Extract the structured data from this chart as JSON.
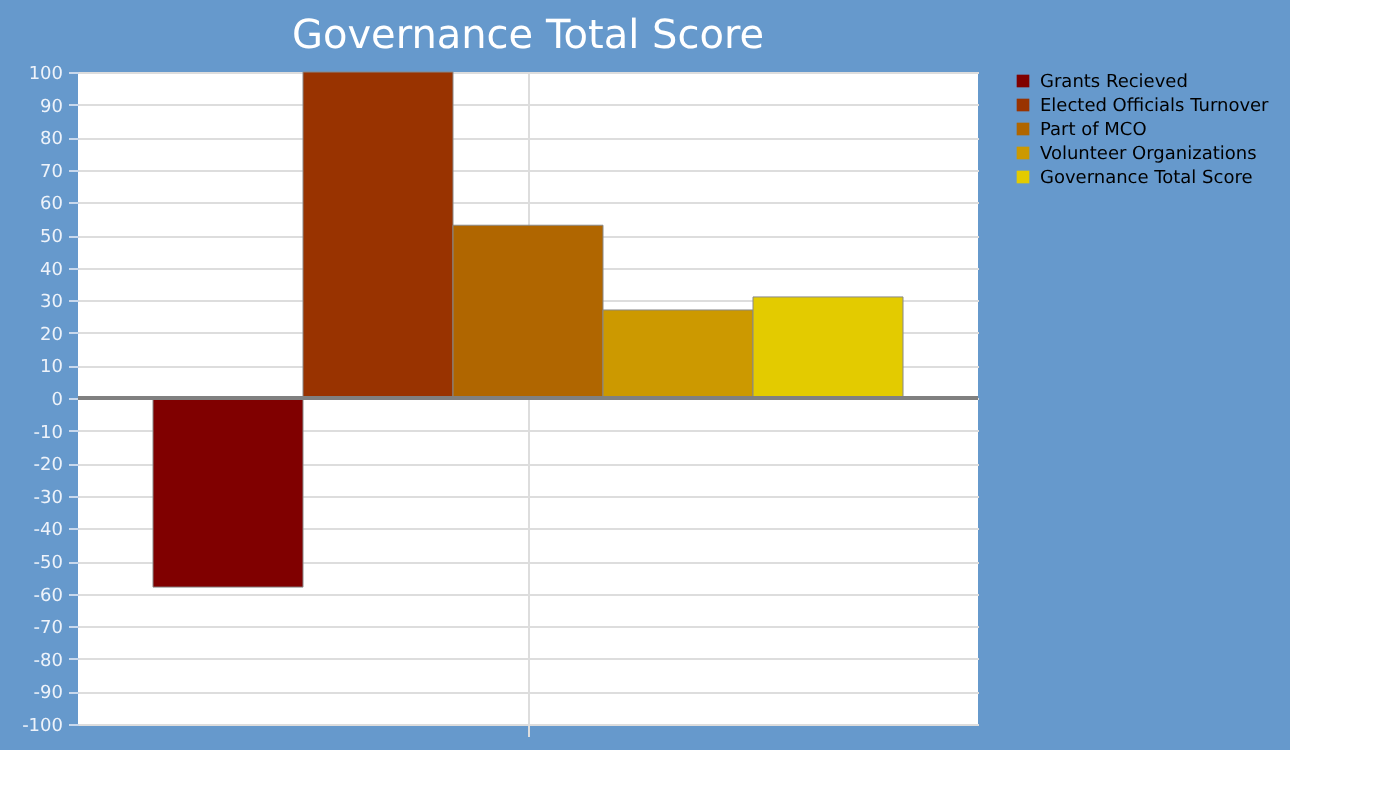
{
  "chart_data": {
    "type": "bar",
    "title": "Governance Total Score",
    "categories": [
      null
    ],
    "series": [
      {
        "name": "Grants Recieved",
        "color": "#800000",
        "values": [
          -58
        ]
      },
      {
        "name": "Elected Officials Turnover",
        "color": "#993300",
        "values": [
          100
        ]
      },
      {
        "name": "Part of MCO",
        "color": "#b06600",
        "values": [
          53
        ]
      },
      {
        "name": "Volunteer Organizations",
        "color": "#cc9900",
        "values": [
          27
        ]
      },
      {
        "name": "Governance Total Score",
        "color": "#e3cb00",
        "values": [
          31
        ]
      }
    ],
    "ylim": [
      -100,
      100
    ],
    "yticks": [
      -100,
      -90,
      -80,
      -70,
      -60,
      -50,
      -40,
      -30,
      -20,
      -10,
      0,
      10,
      20,
      30,
      40,
      50,
      60,
      70,
      80,
      90,
      100
    ],
    "ref_lines": [
      {
        "axis": "y",
        "value": 0,
        "color": "#808080"
      }
    ],
    "grid": true,
    "legend": "top right"
  }
}
